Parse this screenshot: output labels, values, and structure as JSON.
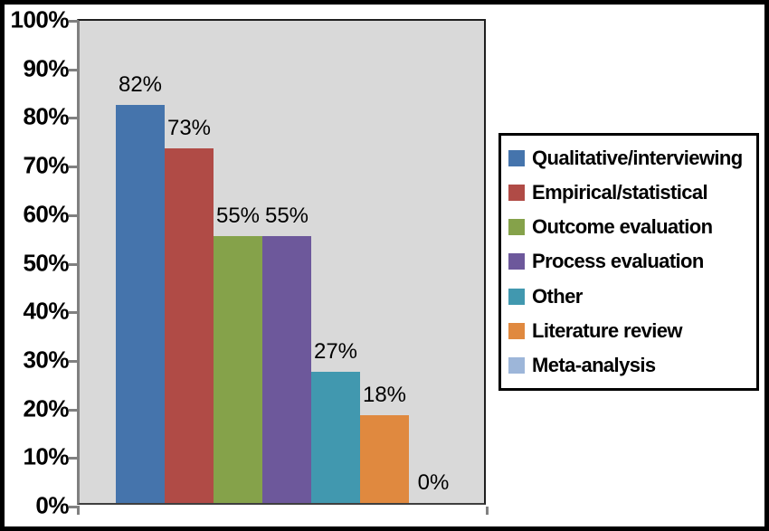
{
  "chart_data": {
    "type": "bar",
    "title": "",
    "xlabel": "",
    "ylabel": "",
    "ylim": [
      0,
      100
    ],
    "grid": false,
    "legend_position": "right",
    "plot_background": "#D9D9D9",
    "y_ticks": [
      {
        "label": "100%",
        "value": 100
      },
      {
        "label": "90%",
        "value": 90
      },
      {
        "label": "80%",
        "value": 80
      },
      {
        "label": "70%",
        "value": 70
      },
      {
        "label": "60%",
        "value": 60
      },
      {
        "label": "50%",
        "value": 50
      },
      {
        "label": "40%",
        "value": 40
      },
      {
        "label": "30%",
        "value": 30
      },
      {
        "label": "20%",
        "value": 20
      },
      {
        "label": "10%",
        "value": 10
      },
      {
        "label": "0%",
        "value": 0
      }
    ],
    "series": [
      {
        "name": "Qualitative/interviewing",
        "value": 82,
        "data_label": "82%",
        "color": "#4574AC"
      },
      {
        "name": "Empirical/statistical",
        "value": 73,
        "data_label": "73%",
        "color": "#B04B46"
      },
      {
        "name": "Outcome evaluation",
        "value": 55,
        "data_label": "55%",
        "color": "#85A24A"
      },
      {
        "name": "Process evaluation",
        "value": 55,
        "data_label": "55%",
        "color": "#6D589B"
      },
      {
        "name": "Other",
        "value": 27,
        "data_label": "27%",
        "color": "#4198AF"
      },
      {
        "name": "Literature review",
        "value": 18,
        "data_label": "18%",
        "color": "#E0893F"
      },
      {
        "name": "Meta-analysis",
        "value": 0,
        "data_label": "0%",
        "color": "#9DB6D9"
      }
    ]
  }
}
